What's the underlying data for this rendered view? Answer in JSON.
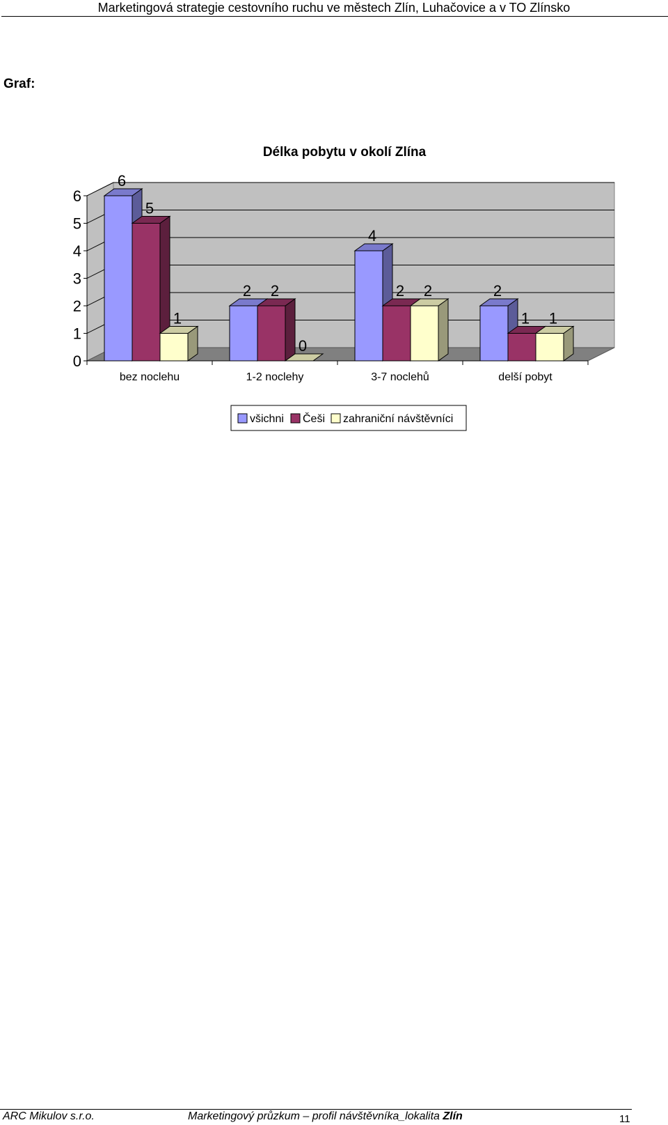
{
  "header": {
    "title": "Marketingová strategie cestovního ruchu ve městech Zlín, Luhačovice a v TO Zlínsko"
  },
  "section_label": "Graf:",
  "chart_data": {
    "type": "bar",
    "title": "Délka pobytu v okolí Zlína",
    "categories": [
      "bez noclehu",
      "1-2 noclehy",
      "3-7 noclehů",
      "delší pobyt"
    ],
    "series": [
      {
        "name": "všichni",
        "values": [
          6,
          2,
          4,
          2
        ]
      },
      {
        "name": "Češi",
        "values": [
          5,
          2,
          2,
          1
        ]
      },
      {
        "name": "zahraniční návštěvníci",
        "values": [
          1,
          0,
          2,
          1
        ]
      }
    ],
    "ylim": [
      0,
      6
    ],
    "yticks": [
      "0",
      "1",
      "2",
      "3",
      "4",
      "5",
      "6"
    ],
    "grid": true,
    "legend": "bottom",
    "colors": {
      "všichni": {
        "front": "#9999ff",
        "side": "#5c5c99",
        "top": "#7a7acc"
      },
      "Češi": {
        "front": "#993366",
        "side": "#5c1f3d",
        "top": "#7a2952"
      },
      "zahraniční návštěvníci": {
        "front": "#ffffcc",
        "side": "#99997a",
        "top": "#cccca3"
      },
      "wall": "#c0c0c0",
      "floor": "#808080"
    }
  },
  "footer": {
    "left": "ARC Mikulov s.r.o.",
    "center_prefix": "Marketingový průzkum – profil návštěvníka_lokalita ",
    "center_bold": "Zlín",
    "page": "11"
  }
}
